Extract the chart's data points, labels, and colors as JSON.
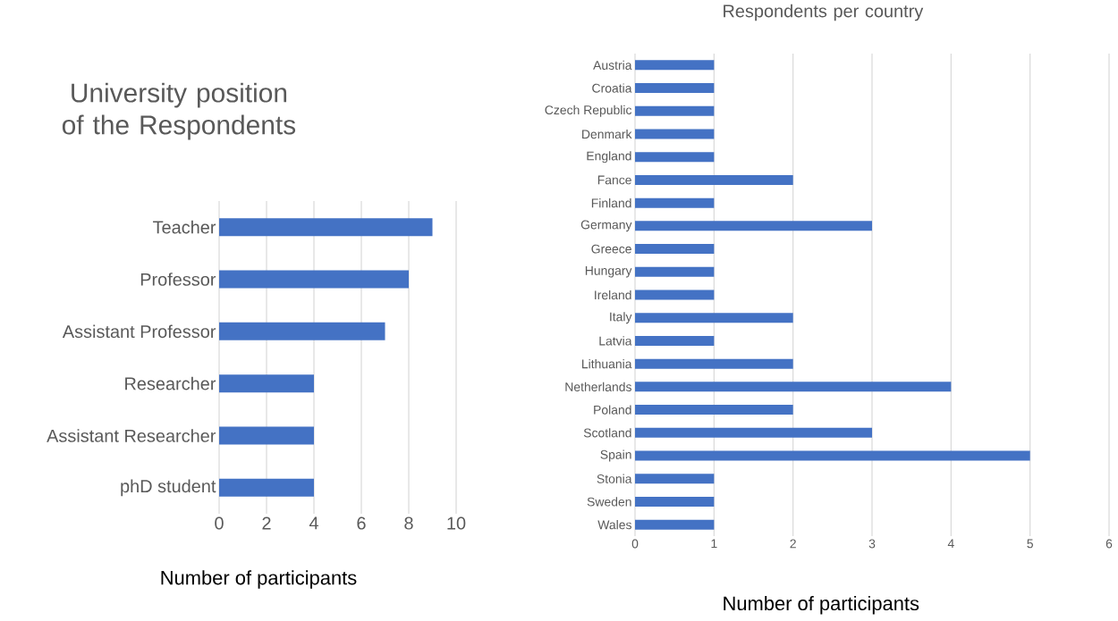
{
  "chart_data": [
    {
      "type": "bar",
      "orientation": "horizontal",
      "title": "University position of the Respondents",
      "xlabel": "Number of participants",
      "categories": [
        "Teacher",
        "Professor",
        "Assistant Professor",
        "Researcher",
        "Assistant Researcher",
        "phD student"
      ],
      "values": [
        9,
        8,
        7,
        4,
        4,
        4
      ],
      "color": "#4472c4",
      "xlim": [
        0,
        10
      ],
      "xticks": [
        0,
        2,
        4,
        6,
        8,
        10
      ],
      "grid": "x"
    },
    {
      "type": "bar",
      "orientation": "horizontal",
      "title": "Respondents per country",
      "xlabel": "Number of participants",
      "categories": [
        "Austria",
        "Croatia",
        "Czech Republic",
        "Denmark",
        "England",
        "Fance",
        "Finland",
        "Germany",
        "Greece",
        "Hungary",
        "Ireland",
        "Italy",
        "Latvia",
        "Lithuania",
        "Netherlands",
        "Poland",
        "Scotland",
        "Spain",
        "Stonia",
        "Sweden",
        "Wales"
      ],
      "values": [
        1,
        1,
        1,
        1,
        1,
        2,
        1,
        3,
        1,
        1,
        1,
        2,
        1,
        2,
        4,
        2,
        3,
        5,
        1,
        1,
        1
      ],
      "color": "#4472c4",
      "xlim": [
        0,
        6
      ],
      "xticks": [
        0,
        1,
        2,
        3,
        4,
        5,
        6
      ],
      "grid": "x"
    }
  ]
}
